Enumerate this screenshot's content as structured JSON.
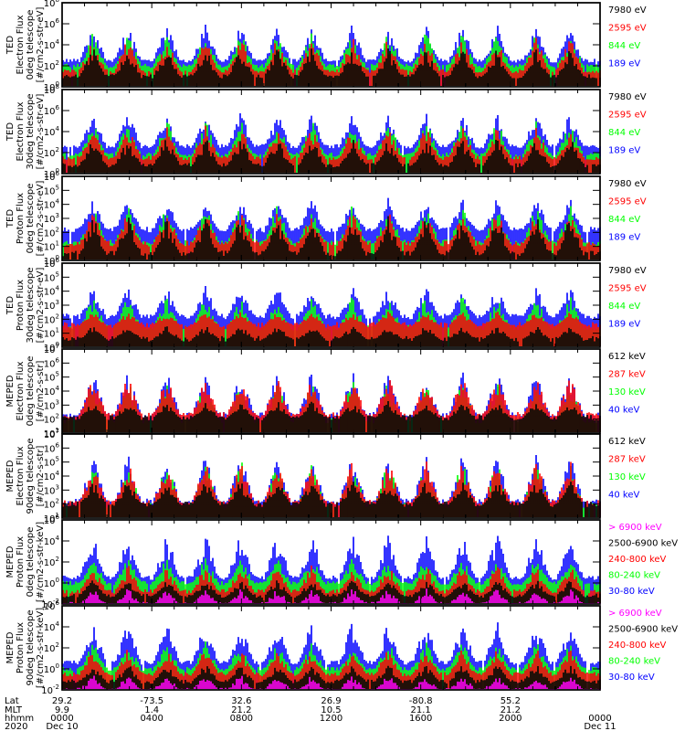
{
  "chart_data": {
    "type": "line",
    "x_time_range": [
      "2020 Dec 10 0000",
      "2020 Dec 11 0000"
    ],
    "panels": [
      {
        "ylabel": [
          "TED",
          "Electron Flux",
          "0deg telescope",
          "[#/cm2-s-str-eV]"
        ],
        "ylim_exp": [
          0,
          8
        ],
        "ticks_exp": [
          0,
          2,
          4,
          6,
          8
        ],
        "legend": [
          {
            "label": "7980 eV",
            "color": "#000000"
          },
          {
            "label": "2595 eV",
            "color": "#ff0000"
          },
          {
            "label": "844 eV",
            "color": "#00ff00"
          },
          {
            "label": "189 eV",
            "color": "#0000ff"
          }
        ],
        "baseline_exp": {
          "#0000ff": 2.5,
          "#00ff00": 2.0,
          "#ff0000": 1.5,
          "#000000": 1.0
        },
        "peak_exp": {
          "#0000ff": 5.8,
          "#00ff00": 5.0,
          "#ff0000": 4.5,
          "#000000": 3.5
        }
      },
      {
        "ylabel": [
          "TED",
          "Electron Flux",
          "30deg telescope",
          "[#/cm2-s-str-eV]"
        ],
        "ylim_exp": [
          0,
          8
        ],
        "ticks_exp": [
          0,
          2,
          4,
          6,
          8
        ],
        "legend": [
          {
            "label": "7980 eV",
            "color": "#000000"
          },
          {
            "label": "2595 eV",
            "color": "#ff0000"
          },
          {
            "label": "844 eV",
            "color": "#00ff00"
          },
          {
            "label": "189 eV",
            "color": "#0000ff"
          }
        ],
        "baseline_exp": {
          "#0000ff": 2.6,
          "#00ff00": 1.8,
          "#ff0000": 1.5,
          "#000000": 0.8
        },
        "peak_exp": {
          "#0000ff": 5.6,
          "#00ff00": 5.0,
          "#ff0000": 4.3,
          "#000000": 3.3
        }
      },
      {
        "ylabel": [
          "TED",
          "Proton Flux",
          "0deg telescope",
          "[#/cm2-s-str-eV]"
        ],
        "ylim_exp": [
          0,
          6
        ],
        "ticks_exp": [
          0,
          1,
          2,
          3,
          4,
          5,
          6
        ],
        "legend": [
          {
            "label": "7980 eV",
            "color": "#000000"
          },
          {
            "label": "2595 eV",
            "color": "#ff0000"
          },
          {
            "label": "844 eV",
            "color": "#00ff00"
          },
          {
            "label": "189 eV",
            "color": "#0000ff"
          }
        ],
        "baseline_exp": {
          "#0000ff": 2.2,
          "#00ff00": 1.3,
          "#ff0000": 1.2,
          "#000000": 0.5
        },
        "peak_exp": {
          "#0000ff": 4.3,
          "#00ff00": 3.8,
          "#ff0000": 3.4,
          "#000000": 3.0
        }
      },
      {
        "ylabel": [
          "TED",
          "Proton Flux",
          "30deg telescope",
          "[#/cm2-s-str-eV]"
        ],
        "ylim_exp": [
          0,
          6
        ],
        "ticks_exp": [
          0,
          1,
          2,
          3,
          4,
          5,
          6
        ],
        "legend": [
          {
            "label": "7980 eV",
            "color": "#000000"
          },
          {
            "label": "2595 eV",
            "color": "#ff0000"
          },
          {
            "label": "844 eV",
            "color": "#00ff00"
          },
          {
            "label": "189 eV",
            "color": "#0000ff"
          }
        ],
        "baseline_exp": {
          "#0000ff": 2.2,
          "#00ff00": 1.4,
          "#ff0000": 1.6,
          "#000000": 0.6
        },
        "peak_exp": {
          "#0000ff": 4.2,
          "#00ff00": 3.5,
          "#ff0000": 2.5,
          "#000000": 1.5
        }
      },
      {
        "ylabel": [
          "MEPED",
          "Electron Flux",
          "0deg telescope",
          "[#/cm2-s-str]"
        ],
        "ylim_exp": [
          1,
          7
        ],
        "ticks_exp": [
          1,
          2,
          3,
          4,
          5,
          6,
          7
        ],
        "legend": [
          {
            "label": "612 keV",
            "color": "#000000"
          },
          {
            "label": "287 keV",
            "color": "#ff0000"
          },
          {
            "label": "130 keV",
            "color": "#00ff00"
          },
          {
            "label": "40 keV",
            "color": "#0000ff"
          }
        ],
        "baseline_exp": {
          "#0000ff": 2.3,
          "#00ff00": 1.9,
          "#ff0000": 2.3,
          "#000000": 2.1
        },
        "peak_exp": {
          "#0000ff": 5.3,
          "#00ff00": 4.6,
          "#ff0000": 4.9,
          "#000000": 3.2
        }
      },
      {
        "ylabel": [
          "MEPED",
          "Electron Flux",
          "90deg telescope",
          "[#/cm2-s-str]"
        ],
        "ylim_exp": [
          1,
          7
        ],
        "ticks_exp": [
          1,
          2,
          3,
          4,
          5,
          6,
          7
        ],
        "legend": [
          {
            "label": "612 keV",
            "color": "#000000"
          },
          {
            "label": "287 keV",
            "color": "#ff0000"
          },
          {
            "label": "130 keV",
            "color": "#00ff00"
          },
          {
            "label": "40 keV",
            "color": "#0000ff"
          }
        ],
        "baseline_exp": {
          "#0000ff": 2.2,
          "#00ff00": 1.9,
          "#ff0000": 2.1,
          "#000000": 2.0
        },
        "peak_exp": {
          "#0000ff": 5.3,
          "#00ff00": 5.0,
          "#ff0000": 4.9,
          "#000000": 3.6
        }
      },
      {
        "ylabel": [
          "MEPED",
          "Proton Flux",
          "0deg telescope",
          "[#/cm2-s-str-keV]"
        ],
        "ylim_exp": [
          -2,
          6
        ],
        "ticks_exp": [
          -2,
          0,
          2,
          4,
          6
        ],
        "legend": [
          {
            "label": "> 6900 keV",
            "color": "#ff00ff"
          },
          {
            "label": "2500-6900 keV",
            "color": "#000000"
          },
          {
            "label": "240-800 keV",
            "color": "#ff0000"
          },
          {
            "label": "80-240 keV",
            "color": "#00ff00"
          },
          {
            "label": "30-80 keV",
            "color": "#0000ff"
          }
        ],
        "baseline_exp": {
          "#0000ff": 0.5,
          "#00ff00": 0.0,
          "#ff0000": -0.8,
          "#000000": -1.2,
          "#ff00ff": -2.0
        },
        "peak_exp": {
          "#0000ff": 4.5,
          "#00ff00": 2.3,
          "#ff0000": 1.6,
          "#000000": 0.3,
          "#ff00ff": -0.6
        }
      },
      {
        "ylabel": [
          "MEPED",
          "Proton Flux",
          "90deg telescope",
          "[#/cm2-s-str-keV]"
        ],
        "ylim_exp": [
          -2,
          6
        ],
        "ticks_exp": [
          -2,
          0,
          2,
          4,
          6
        ],
        "legend": [
          {
            "label": "> 6900 keV",
            "color": "#ff00ff"
          },
          {
            "label": "2500-6900 keV",
            "color": "#000000"
          },
          {
            "label": "240-800 keV",
            "color": "#ff0000"
          },
          {
            "label": "80-240 keV",
            "color": "#00ff00"
          },
          {
            "label": "30-80 keV",
            "color": "#0000ff"
          }
        ],
        "baseline_exp": {
          "#0000ff": 0.6,
          "#00ff00": 0.0,
          "#ff0000": -0.5,
          "#000000": -1.2,
          "#ff00ff": -2.0
        },
        "peak_exp": {
          "#0000ff": 4.3,
          "#00ff00": 2.4,
          "#ff0000": 1.8,
          "#000000": 0.4,
          "#ff00ff": -0.6
        }
      }
    ],
    "pass_count": 14,
    "footer": {
      "row_labels": [
        "Lat",
        "MLT",
        "hhmm",
        "2020"
      ],
      "columns": [
        {
          "lat": "29.2",
          "mlt": "9.9",
          "hhmm": "0000",
          "date": "Dec 10"
        },
        {
          "lat": "-73.5",
          "mlt": "1.4",
          "hhmm": "0400",
          "date": ""
        },
        {
          "lat": "32.6",
          "mlt": "21.2",
          "hhmm": "0800",
          "date": ""
        },
        {
          "lat": "26.9",
          "mlt": "10.5",
          "hhmm": "1200",
          "date": ""
        },
        {
          "lat": "-80.8",
          "mlt": "21.1",
          "hhmm": "1600",
          "date": ""
        },
        {
          "lat": "55.2",
          "mlt": "21.2",
          "hhmm": "2000",
          "date": ""
        },
        {
          "lat": "",
          "mlt": "",
          "hhmm": "0000",
          "date": "Dec 11"
        }
      ]
    }
  }
}
